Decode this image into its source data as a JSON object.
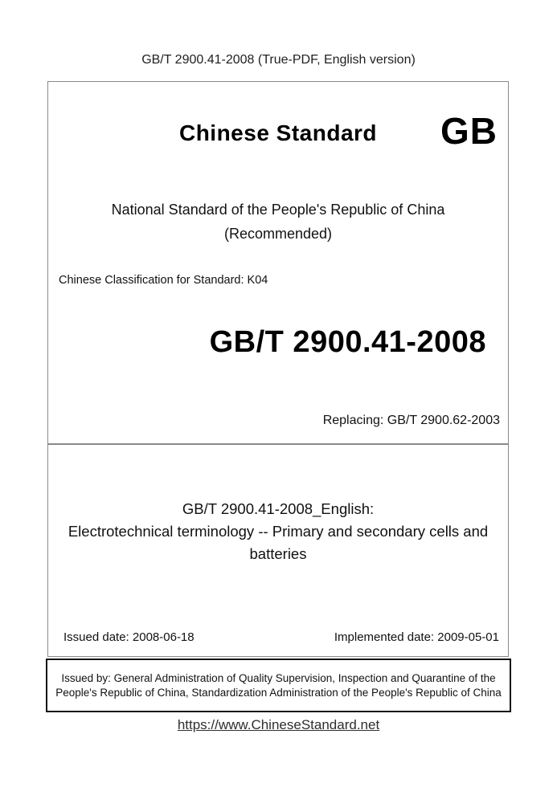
{
  "page": {
    "header": "GB/T 2900.41-2008 (True-PDF, English version)",
    "footer_link": "https://www.ChineseStandard.net"
  },
  "cover": {
    "brand": "Chinese Standard",
    "logo": "GB",
    "national_line1": "National Standard of the People's Republic of China",
    "national_line2": "(Recommended)",
    "classification": "Chinese Classification for Standard: K04",
    "standard_number": "GB/T 2900.41-2008",
    "replacing": "Replacing: GB/T 2900.62-2003"
  },
  "title_block": {
    "english_label": "GB/T 2900.41-2008_English:",
    "title": "Electrotechnical terminology -- Primary and secondary cells and batteries",
    "issued_date": "Issued date: 2008-06-18",
    "implemented_date": "Implemented date: 2009-05-01"
  },
  "issuer": {
    "text": "Issued by: General Administration of Quality Supervision, Inspection and Quarantine of the People's Republic of China, Standardization Administration of the People's Republic of China"
  },
  "colors": {
    "box_border_gray": "#8a8a8a",
    "box_border_black": "#141414",
    "text": "#111111",
    "link": "#2e2e2e"
  }
}
